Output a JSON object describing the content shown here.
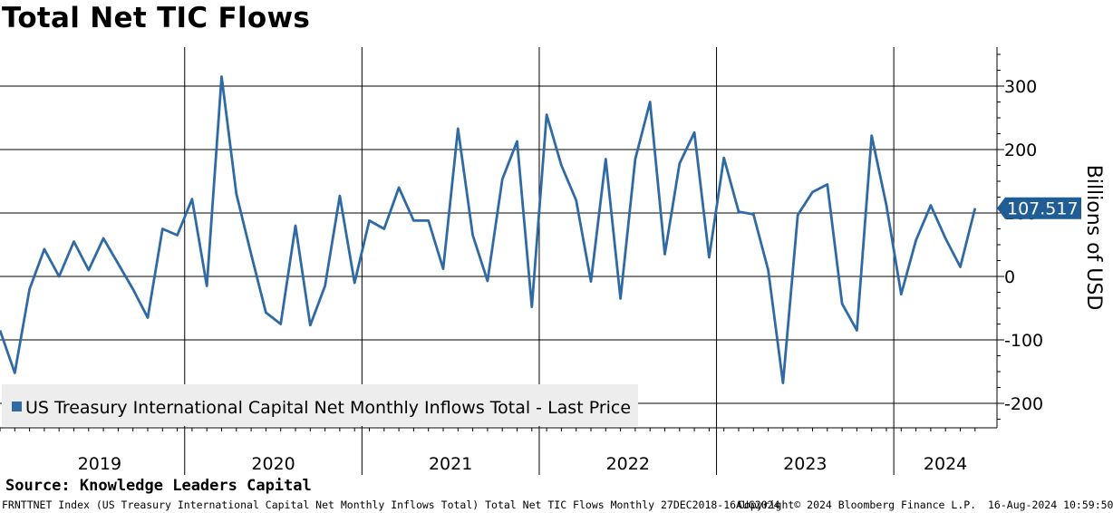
{
  "title": "Total Net TIC Flows",
  "source": "Source: Knowledge Leaders Capital",
  "footer": {
    "description": "FRNTTNET Index (US Treasury International Capital Net Monthly Inflows Total) Total Net TIC Flows  Monthly 27DEC2018-16AUG2024",
    "copyright": "Copyright© 2024 Bloomberg Finance L.P.",
    "timestamp": "16-Aug-2024 10:59:50"
  },
  "colors": {
    "line": "#2f6aa5",
    "last_price_tag": "#1f5d94",
    "legend_bg": "#ededed",
    "grid": "#000000"
  },
  "chart_data": {
    "type": "line",
    "title": "Total Net TIC Flows",
    "ylabel": "Billions of USD",
    "ylim": [
      -240,
      360
    ],
    "yticks": [
      -200,
      -100,
      0,
      100,
      200,
      300
    ],
    "x_start": "2018-12",
    "year_labels": [
      "2019",
      "2020",
      "2021",
      "2022",
      "2023",
      "2024"
    ],
    "legend": "US Treasury International Capital Net Monthly Inflows Total - Last Price",
    "last_price_label": "107.517",
    "last_value": 107.517,
    "series": [
      {
        "name": "US Treasury International Capital Net Monthly Inflows Total",
        "values": [
          -85,
          -152,
          -20,
          43,
          0,
          55,
          10,
          60,
          20,
          -20,
          -65,
          75,
          65,
          122,
          -15,
          315,
          130,
          35,
          -57,
          -75,
          80,
          -77,
          -15,
          127,
          -10,
          88,
          75,
          140,
          88,
          88,
          12,
          233,
          65,
          -7,
          153,
          213,
          -48,
          255,
          175,
          120,
          -8,
          185,
          -35,
          185,
          275,
          35,
          178,
          227,
          30,
          187,
          102,
          98,
          10,
          -168,
          97,
          133,
          145,
          -43,
          -85,
          222,
          112,
          -28,
          57,
          112,
          60,
          15,
          107.517
        ]
      }
    ]
  }
}
